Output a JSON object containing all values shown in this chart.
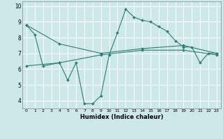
{
  "title": "",
  "xlabel": "Humidex (Indice chaleur)",
  "bg_color": "#cce8e8",
  "grid_color": "#ffffff",
  "line_color": "#2e7d72",
  "xlim": [
    -0.5,
    23.5
  ],
  "ylim": [
    3.5,
    10.3
  ],
  "yticks": [
    4,
    5,
    6,
    7,
    8,
    9,
    10
  ],
  "xticks": [
    0,
    1,
    2,
    3,
    4,
    5,
    6,
    7,
    8,
    9,
    10,
    11,
    12,
    13,
    14,
    15,
    16,
    17,
    18,
    19,
    20,
    21,
    22,
    23
  ],
  "series1_x": [
    0,
    1,
    2,
    4,
    5,
    6,
    7,
    8,
    9,
    10,
    11,
    12,
    13,
    14,
    15,
    16,
    17,
    18,
    19,
    20,
    21,
    22,
    23
  ],
  "series1_y": [
    8.8,
    8.2,
    6.2,
    6.4,
    5.3,
    6.4,
    3.8,
    3.8,
    4.3,
    6.9,
    8.3,
    9.8,
    9.3,
    9.1,
    9.0,
    8.7,
    8.4,
    7.8,
    7.4,
    7.4,
    6.4,
    7.0,
    7.0
  ],
  "series2_x": [
    0,
    4,
    9,
    14,
    19,
    23
  ],
  "series2_y": [
    8.8,
    7.6,
    7.0,
    7.3,
    7.5,
    7.0
  ],
  "series3_x": [
    0,
    4,
    9,
    14,
    19,
    23
  ],
  "series3_y": [
    6.2,
    6.4,
    6.9,
    7.2,
    7.2,
    6.9
  ]
}
